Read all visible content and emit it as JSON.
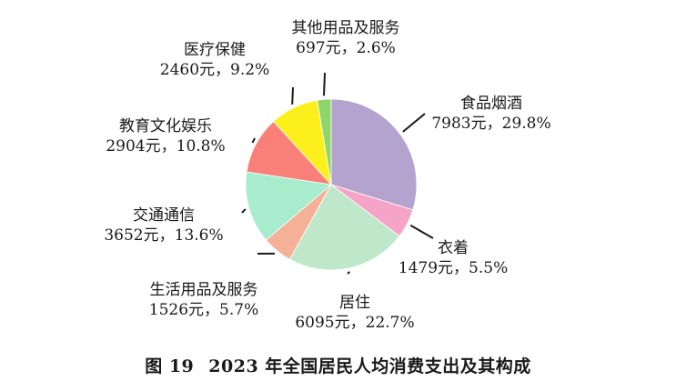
{
  "chart_data": {
    "type": "pie",
    "title": "2023 年全国居民人均消费支出及其构成",
    "figure_number": "图 19",
    "slices": [
      {
        "name": "食品烟酒",
        "value": 7983,
        "percent": "29.8%",
        "value_label": "7983元",
        "color": "#b5a3cf"
      },
      {
        "name": "衣着",
        "value": 1479,
        "percent": "5.5%",
        "value_label": "1479元",
        "color": "#f6a3c8"
      },
      {
        "name": "居住",
        "value": 6095,
        "percent": "22.7%",
        "value_label": "6095元",
        "color": "#bfe8cb"
      },
      {
        "name": "生活用品及服务",
        "value": 1526,
        "percent": "5.7%",
        "value_label": "1526元",
        "color": "#f4b197"
      },
      {
        "name": "交通通信",
        "value": 3652,
        "percent": "13.6%",
        "value_label": "3652元",
        "color": "#a6eccd"
      },
      {
        "name": "教育文化娱乐",
        "value": 2904,
        "percent": "10.8%",
        "value_label": "2904元",
        "color": "#f88079"
      },
      {
        "name": "医疗保健",
        "value": 2460,
        "percent": "9.2%",
        "value_label": "2460元",
        "color": "#fbf01c"
      },
      {
        "name": "其他用品及服务",
        "value": 697,
        "percent": "2.6%",
        "value_label": "697元",
        "color": "#8ed56a"
      }
    ]
  }
}
